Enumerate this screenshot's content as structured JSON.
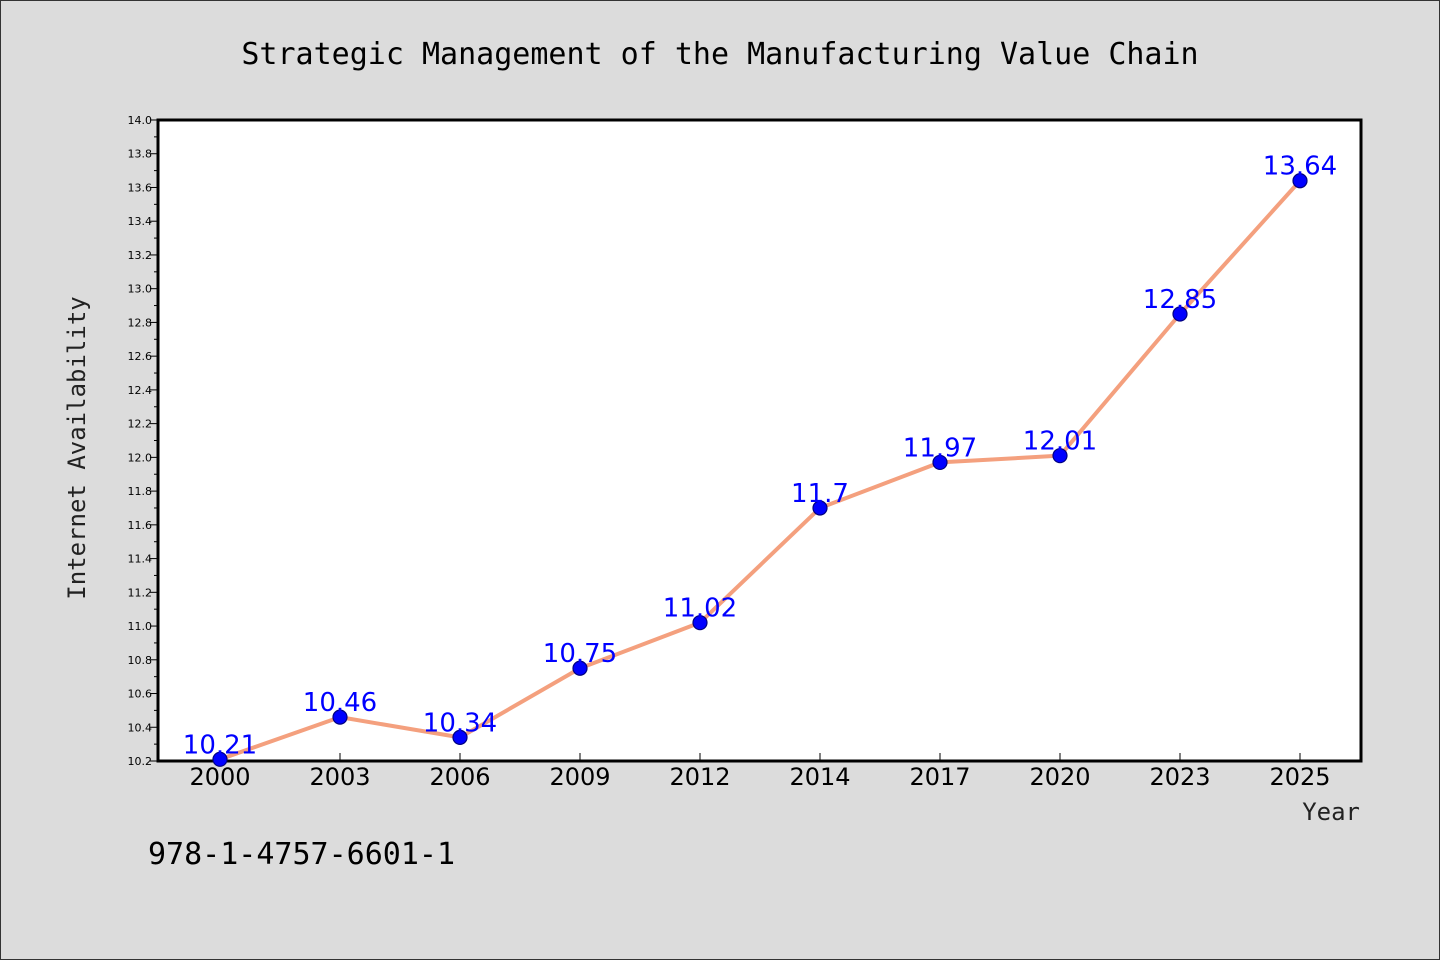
{
  "chart_data": {
    "type": "line",
    "title": "Strategic Management of the Manufacturing Value Chain",
    "xlabel": "Year",
    "ylabel": "Internet Availability",
    "x": [
      "2000",
      "2003",
      "2006",
      "2009",
      "2012",
      "2014",
      "2017",
      "2020",
      "2023",
      "2025"
    ],
    "y": [
      10.21,
      10.46,
      10.34,
      10.75,
      11.02,
      11.7,
      11.97,
      12.01,
      12.85,
      13.64
    ],
    "data_labels": [
      "10.21",
      "10.46",
      "10.34",
      "10.75",
      "11.02",
      "11.7",
      "11.97",
      "12.01",
      "12.85",
      "13.64"
    ],
    "ylim": [
      10.2,
      14.0
    ],
    "yticks": [
      "10.2",
      "10.4",
      "10.6",
      "10.8",
      "11.0",
      "11.2",
      "11.4",
      "11.6",
      "11.8",
      "12.0",
      "12.2",
      "12.4",
      "12.6",
      "12.8",
      "13.0",
      "13.2",
      "13.4",
      "13.6",
      "13.8",
      "14.0"
    ],
    "grid": false,
    "legend": "none",
    "colors": {
      "line": "#f4a07e",
      "marker": "#0000ff",
      "marker_edge": "#000080",
      "label": "#0000ff",
      "background": "#dcdcdc",
      "plot_background": "#ffffff"
    }
  },
  "footer": {
    "isbn": "978-1-4757-6601-1"
  }
}
